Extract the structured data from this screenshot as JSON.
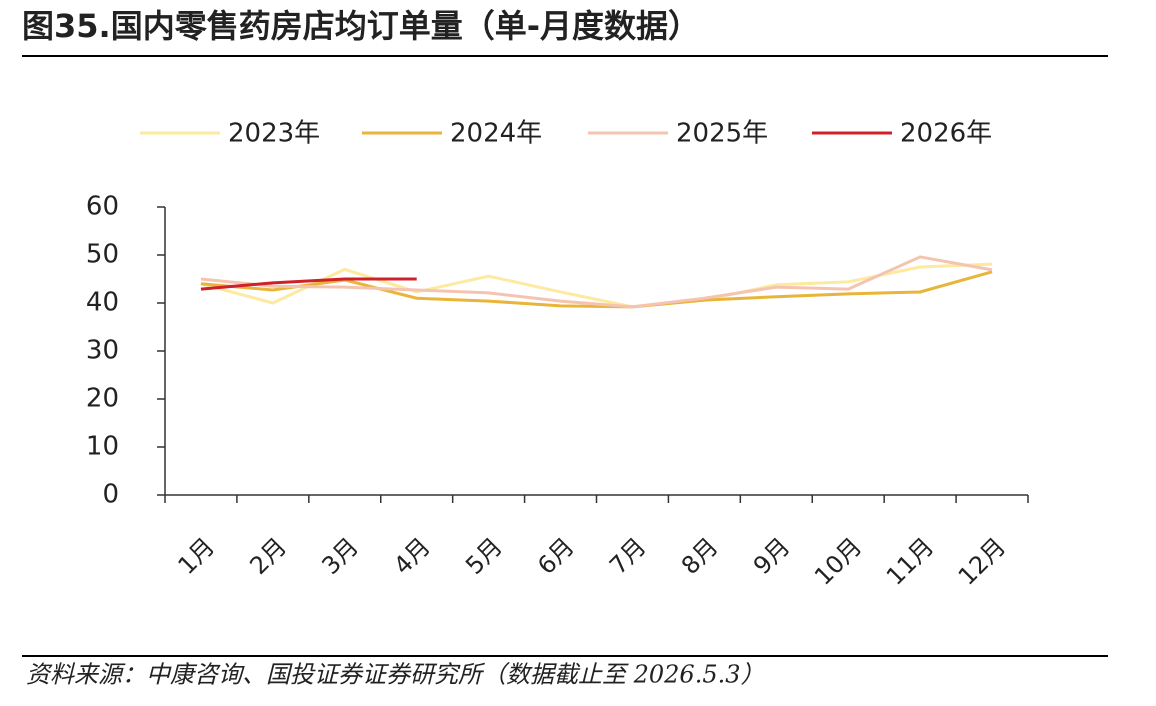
{
  "chart_data": {
    "type": "line",
    "title": "图35.国内零售药房店均订单量（单-月度数据）",
    "source": "资料来源：中康咨询、国投证券证券研究所（数据截止至 2026.5.3）",
    "categories": [
      "1月",
      "2月",
      "3月",
      "4月",
      "5月",
      "6月",
      "7月",
      "8月",
      "9月",
      "10月",
      "11月",
      "12月"
    ],
    "series": [
      {
        "name": "2023年",
        "color": "#fde9a0",
        "values": [
          44,
          40,
          47,
          42.3,
          45.6,
          42.3,
          39.2,
          40.6,
          43.8,
          44.4,
          47.5,
          48.1
        ]
      },
      {
        "name": "2024年",
        "color": "#e8b53a",
        "values": [
          44,
          42.7,
          44.8,
          41,
          40.4,
          39.4,
          39.2,
          40.6,
          41.3,
          41.9,
          42.3,
          46.5
        ]
      },
      {
        "name": "2025年",
        "color": "#f5c4b0",
        "values": [
          45,
          43.5,
          43.3,
          42.7,
          42.1,
          40.4,
          39.2,
          41,
          43.3,
          42.9,
          49.6,
          46.9
        ]
      },
      {
        "name": "2026年",
        "color": "#d0202a",
        "values": [
          42.9,
          44.2,
          45,
          45,
          null,
          null,
          null,
          null,
          null,
          null,
          null,
          null
        ]
      }
    ],
    "ylim": [
      0,
      60
    ],
    "yticks": [
      0,
      10,
      20,
      30,
      40,
      50,
      60
    ],
    "legend": "top"
  }
}
